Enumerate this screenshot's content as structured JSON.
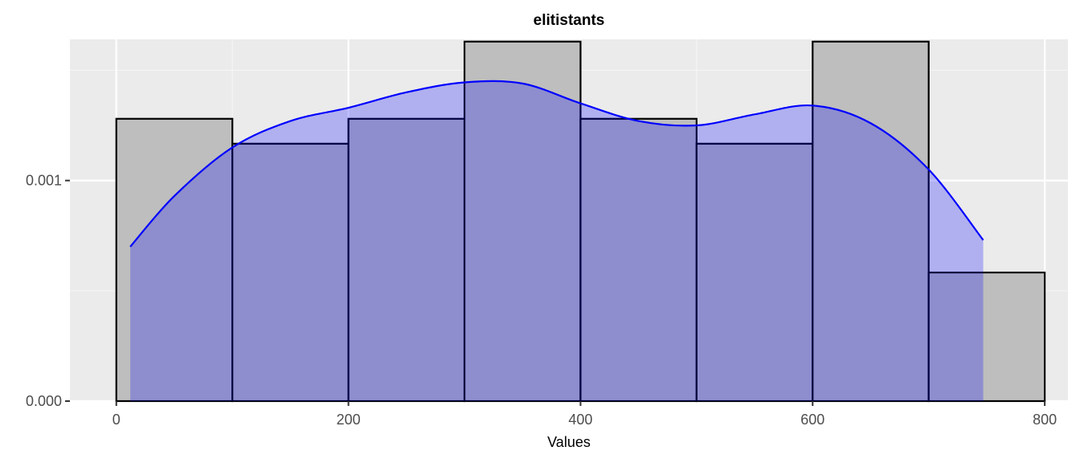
{
  "chart_data": {
    "type": "bar",
    "title": "elitistants",
    "xlabel": "Values",
    "ylabel": "",
    "xlim": [
      -40,
      820
    ],
    "ylim": [
      0,
      0.00164
    ],
    "x_ticks": [
      0,
      200,
      400,
      600,
      800
    ],
    "x_tick_labels": [
      "0",
      "200",
      "400",
      "600",
      "800"
    ],
    "y_ticks": [
      0,
      0.001
    ],
    "y_tick_labels": [
      "0.000",
      "0.001"
    ],
    "grid": true,
    "histogram": {
      "bin_edges": [
        0,
        100,
        200,
        300,
        400,
        500,
        600,
        700,
        800
      ],
      "density": [
        0.00128,
        0.001167,
        0.00128,
        0.00163,
        0.00128,
        0.001167,
        0.00163,
        0.000583
      ],
      "fill_color": "#bebebe",
      "edge_color": "#000000"
    },
    "density_curve": {
      "x": [
        12,
        50,
        100,
        150,
        200,
        250,
        300,
        350,
        400,
        450,
        500,
        550,
        600,
        650,
        700,
        747
      ],
      "y": [
        0.0007,
        0.00093,
        0.00115,
        0.00127,
        0.00133,
        0.0014,
        0.001445,
        0.00144,
        0.00135,
        0.00127,
        0.00125,
        0.0013,
        0.00134,
        0.00126,
        0.00105,
        0.00073
      ],
      "line_color": "#0000ff",
      "fill_color": "#0000ff",
      "fill_opacity": 0.25
    },
    "colors": {
      "panel_background": "#ebebeb",
      "grid_major": "#ffffff",
      "grid_minor": "#f5f5f5"
    }
  }
}
